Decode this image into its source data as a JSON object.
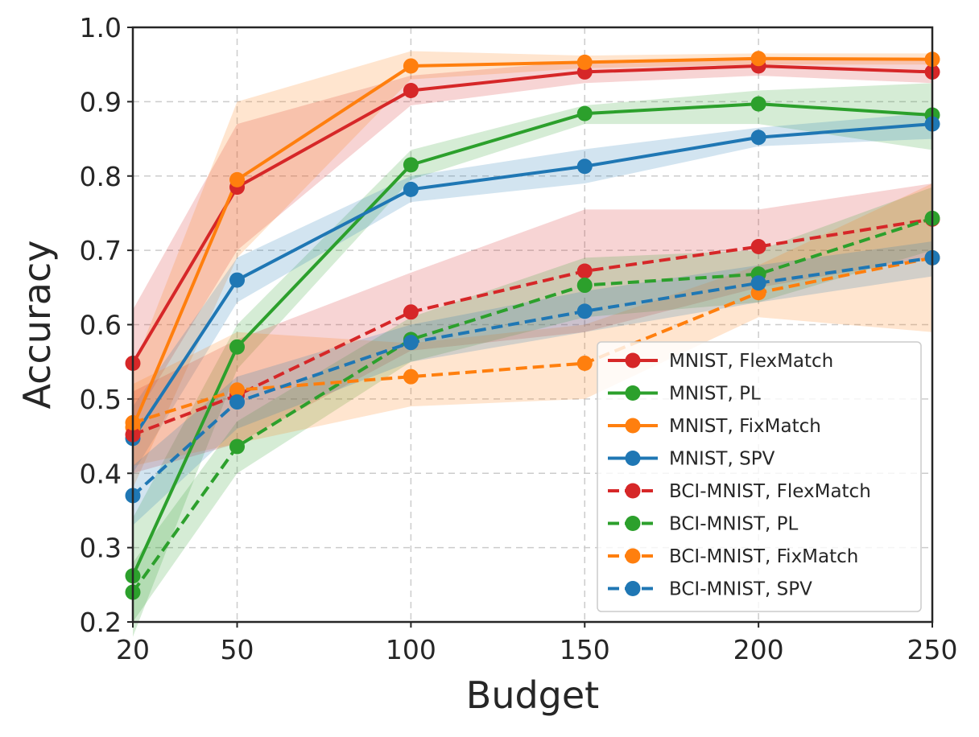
{
  "chart_data": {
    "type": "line",
    "title": "",
    "xlabel": "Budget",
    "ylabel": "Accuracy",
    "x": [
      20,
      50,
      100,
      150,
      200,
      250
    ],
    "xticks": [
      "20",
      "50",
      "100",
      "150",
      "200",
      "250"
    ],
    "yticks": [
      "0.2",
      "0.3",
      "0.4",
      "0.5",
      "0.6",
      "0.7",
      "0.8",
      "0.9",
      "1.0"
    ],
    "xlim": [
      20,
      250
    ],
    "ylim": [
      0.2,
      1.0
    ],
    "grid": true,
    "legend_position": "lower-right",
    "series": [
      {
        "name": "MNIST, FlexMatch",
        "color": "#d62728",
        "style": "solid",
        "values": [
          0.548,
          0.785,
          0.915,
          0.94,
          0.948,
          0.94
        ],
        "band_low": [
          0.47,
          0.7,
          0.895,
          0.925,
          0.935,
          0.925
        ],
        "band_high": [
          0.62,
          0.87,
          0.935,
          0.955,
          0.96,
          0.955
        ]
      },
      {
        "name": "MNIST, PL",
        "color": "#2ca02c",
        "style": "solid",
        "values": [
          0.262,
          0.57,
          0.815,
          0.884,
          0.897,
          0.882
        ],
        "band_low": [
          0.18,
          0.54,
          0.795,
          0.87,
          0.87,
          0.835
        ],
        "band_high": [
          0.34,
          0.6,
          0.835,
          0.895,
          0.915,
          0.925
        ]
      },
      {
        "name": "MNIST, FixMatch",
        "color": "#ff7f0e",
        "style": "solid",
        "values": [
          0.462,
          0.795,
          0.948,
          0.953,
          0.958,
          0.957
        ],
        "band_low": [
          0.38,
          0.69,
          0.93,
          0.945,
          0.95,
          0.95
        ],
        "band_high": [
          0.54,
          0.9,
          0.968,
          0.962,
          0.965,
          0.965
        ]
      },
      {
        "name": "MNIST, SPV",
        "color": "#1f77b4",
        "style": "solid",
        "values": [
          0.447,
          0.66,
          0.782,
          0.813,
          0.852,
          0.87
        ],
        "band_low": [
          0.4,
          0.63,
          0.765,
          0.79,
          0.84,
          0.85
        ],
        "band_high": [
          0.49,
          0.69,
          0.8,
          0.836,
          0.865,
          0.885
        ]
      },
      {
        "name": "BCI-MNIST, FlexMatch",
        "color": "#d62728",
        "style": "dashed",
        "values": [
          0.452,
          0.505,
          0.617,
          0.672,
          0.705,
          0.742
        ],
        "band_low": [
          0.4,
          0.44,
          0.565,
          0.59,
          0.65,
          0.69
        ],
        "band_high": [
          0.51,
          0.58,
          0.67,
          0.755,
          0.755,
          0.79
        ]
      },
      {
        "name": "BCI-MNIST, PL",
        "color": "#2ca02c",
        "style": "dashed",
        "values": [
          0.24,
          0.436,
          0.58,
          0.653,
          0.668,
          0.743
        ],
        "band_low": [
          0.2,
          0.4,
          0.55,
          0.61,
          0.63,
          0.7
        ],
        "band_high": [
          0.28,
          0.47,
          0.61,
          0.69,
          0.7,
          0.785
        ]
      },
      {
        "name": "BCI-MNIST, FixMatch",
        "color": "#ff7f0e",
        "style": "dashed",
        "values": [
          0.468,
          0.512,
          0.53,
          0.548,
          0.643,
          0.69
        ],
        "band_low": [
          0.41,
          0.44,
          0.49,
          0.5,
          0.61,
          0.59
        ],
        "band_high": [
          0.52,
          0.59,
          0.575,
          0.6,
          0.68,
          0.79
        ]
      },
      {
        "name": "BCI-MNIST, SPV",
        "color": "#1f77b4",
        "style": "dashed",
        "values": [
          0.37,
          0.496,
          0.576,
          0.618,
          0.656,
          0.69
        ],
        "band_low": [
          0.33,
          0.46,
          0.55,
          0.59,
          0.63,
          0.665
        ],
        "band_high": [
          0.41,
          0.53,
          0.6,
          0.645,
          0.68,
          0.712
        ]
      }
    ]
  }
}
